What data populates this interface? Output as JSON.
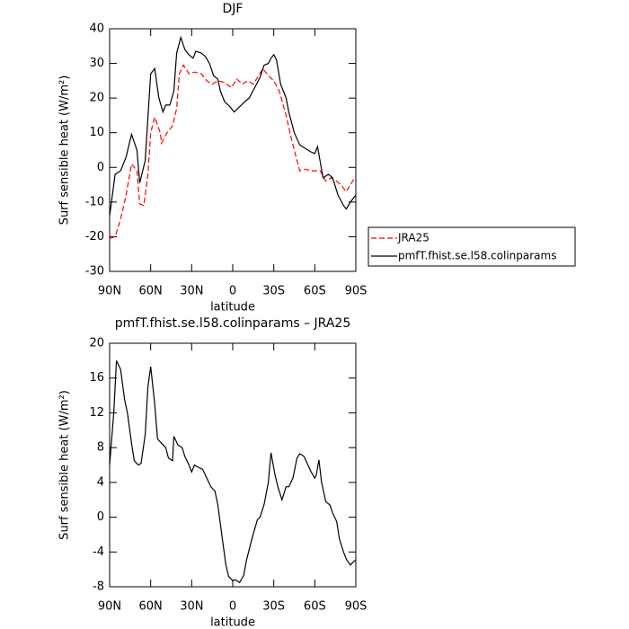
{
  "chart_data": [
    {
      "type": "line",
      "title": "DJF",
      "xlabel": "latitude",
      "ylabel": "Surf sensible heat (W/m²)",
      "xlim": [
        90,
        -90
      ],
      "xticks": [
        {
          "value": 90,
          "label": "90N"
        },
        {
          "value": 60,
          "label": "60N"
        },
        {
          "value": 30,
          "label": "30N"
        },
        0,
        {
          "value": -30,
          "label": "30S"
        },
        {
          "value": -60,
          "label": "60S"
        },
        {
          "value": -90,
          "label": "90S"
        }
      ],
      "ylim": [
        -30,
        40
      ],
      "yticks": [
        -30,
        -20,
        -10,
        0,
        10,
        20,
        30,
        40
      ],
      "legend": true,
      "series": [
        {
          "name": "JRA25",
          "color": "#ff0000",
          "line_style": "dashed",
          "x": [
            90,
            86,
            82,
            78,
            74,
            70,
            68,
            65,
            62,
            60,
            57,
            53,
            52,
            48,
            44,
            41,
            39,
            36,
            32,
            28,
            23,
            19,
            15,
            11,
            6,
            1,
            -3,
            -7,
            -11,
            -15,
            -19,
            -22,
            -26,
            -30,
            -34,
            -39,
            -43,
            -47,
            -49,
            -53,
            -57,
            -60,
            -64,
            -68,
            -72,
            -76,
            -79,
            -83,
            -86,
            -90
          ],
          "values": [
            -20.5,
            -20,
            -15,
            -8,
            1,
            -1,
            -10.5,
            -11,
            -2,
            10,
            14.5,
            10,
            7,
            10,
            12,
            17,
            27,
            29.5,
            27,
            27.5,
            27,
            25,
            24,
            25,
            24.5,
            23,
            25.5,
            24,
            25,
            24,
            26.5,
            28.5,
            26.5,
            25,
            22,
            15,
            8,
            2,
            -1,
            -0.5,
            -1,
            -1,
            -1,
            -4,
            -3,
            -4,
            -5,
            -7,
            -5,
            -2.5
          ]
        },
        {
          "name": "pmfT.fhist.se.l58.colinparams",
          "color": "#000000",
          "line_style": "solid",
          "x": [
            90,
            86,
            82,
            78,
            74,
            70,
            68,
            64,
            60,
            57,
            54,
            51,
            49,
            46,
            43,
            41,
            38,
            35,
            32,
            29,
            27,
            23,
            20,
            17,
            14,
            11,
            9,
            6,
            2,
            -1,
            -5,
            -9,
            -12,
            -16,
            -20,
            -23,
            -26,
            -28,
            -30,
            -32,
            -35,
            -39,
            -41,
            -45,
            -49,
            -53,
            -57,
            -60,
            -62,
            -66,
            -70,
            -73,
            -77,
            -81,
            -83,
            -86,
            -90
          ],
          "values": [
            -14,
            -2,
            -1,
            3,
            9.5,
            5,
            -4.5,
            2,
            27,
            28.5,
            20,
            16,
            18,
            18,
            22,
            33,
            37.5,
            34,
            32.5,
            31.5,
            33.5,
            33,
            32,
            30,
            26.5,
            25.5,
            22,
            19,
            17.5,
            16,
            17.5,
            19,
            20,
            23,
            26,
            29.5,
            30,
            31.5,
            32.5,
            31,
            24,
            20,
            16,
            10,
            6.5,
            5.5,
            4.5,
            4,
            6,
            -3,
            -2,
            -3,
            -8,
            -11,
            -12,
            -10,
            -8
          ]
        }
      ]
    },
    {
      "type": "line",
      "title": "pmfT.fhist.se.l58.colinparams – JRA25",
      "xlabel": "latitude",
      "ylabel": "Surf sensible heat (W/m²)",
      "xlim": [
        90,
        -90
      ],
      "xticks": [
        {
          "value": 90,
          "label": "90N"
        },
        {
          "value": 60,
          "label": "60N"
        },
        {
          "value": 30,
          "label": "30N"
        },
        0,
        {
          "value": -30,
          "label": "30S"
        },
        {
          "value": -60,
          "label": "60S"
        },
        {
          "value": -90,
          "label": "90S"
        }
      ],
      "ylim": [
        -8,
        20
      ],
      "yticks": [
        -8,
        -4,
        0,
        4,
        8,
        12,
        16,
        20
      ],
      "color": "#000000",
      "x": [
        90,
        87,
        85,
        82,
        79,
        77,
        74,
        72,
        69,
        67,
        64,
        62,
        60,
        57,
        55,
        52,
        49,
        47,
        44,
        43,
        40,
        37,
        35,
        32,
        30,
        28,
        26,
        22,
        19,
        16,
        13,
        11,
        8,
        5,
        3,
        0,
        -2,
        -5,
        -8,
        -10,
        -14,
        -18,
        -20,
        -23,
        -26,
        -28,
        -31,
        -33,
        -36,
        -39,
        -41,
        -44,
        -47,
        -49,
        -52,
        -55,
        -57,
        -60,
        -61,
        -63,
        -65,
        -68,
        -71,
        -73,
        -76,
        -78,
        -81,
        -83,
        -86,
        -89,
        -90
      ],
      "values": [
        6,
        12,
        18,
        17,
        13.5,
        12,
        8.5,
        6.5,
        6,
        6.2,
        9.5,
        15,
        17.3,
        13,
        9,
        8.5,
        8,
        6.8,
        6.5,
        9.3,
        8.3,
        8,
        7,
        6,
        5.2,
        6,
        5.8,
        5.5,
        4.5,
        3.5,
        3,
        1.5,
        -2,
        -5.5,
        -6.8,
        -7.3,
        -7.2,
        -7.5,
        -6.7,
        -5,
        -2.5,
        -0.3,
        0,
        1.5,
        4,
        7.4,
        4.8,
        3.5,
        2,
        3.5,
        3.5,
        4.5,
        6.8,
        7.3,
        7,
        6,
        5.3,
        4.5,
        4.8,
        6.6,
        4,
        1.8,
        1.4,
        0.5,
        -0.5,
        -2.5,
        -4,
        -4.8,
        -5.5,
        -5,
        -5
      ]
    }
  ]
}
